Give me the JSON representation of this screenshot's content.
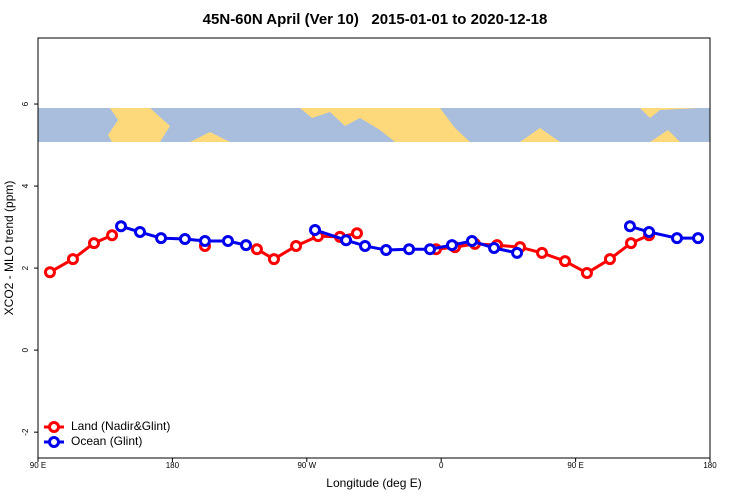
{
  "chart_data": {
    "type": "line",
    "title": "45N-60N April (Ver 10)   2015-01-01 to 2020-12-18",
    "x_label": "Longitude (deg E)",
    "y_label": "XCO2 - MLO trend (ppm)",
    "xlim": [
      90,
      540
    ],
    "xticks": [
      {
        "value": 90,
        "label": "90 E"
      },
      {
        "value": 180,
        "label": "180"
      },
      {
        "value": 270,
        "label": "90 W"
      },
      {
        "value": 360,
        "label": "0"
      },
      {
        "value": 450,
        "label": "90 E"
      },
      {
        "value": 540,
        "label": "180"
      }
    ],
    "ylim": [
      -2.63,
      7.61
    ],
    "yticks": [
      -2,
      0,
      2,
      4,
      6
    ],
    "legend": "bottomleft",
    "series": [
      {
        "name": "Land (Nadir&Glint)",
        "color": "#ff0000",
        "x": [
          98.0,
          113.4,
          127.5,
          139.6,
          null,
          201.8,
          null,
          236.6,
          248.0,
          262.8,
          277.5,
          292.2,
          303.6,
          null,
          356.5,
          369.2,
          382.6,
          397.4,
          412.8,
          427.5,
          442.9,
          457.6,
          473.0,
          487.1,
          499.2
        ],
        "values": [
          1.9,
          2.22,
          2.61,
          2.8,
          null,
          2.54,
          null,
          2.46,
          2.22,
          2.54,
          2.78,
          2.76,
          2.85,
          null,
          2.46,
          2.51,
          2.59,
          2.56,
          2.51,
          2.37,
          2.17,
          1.88,
          2.22,
          2.61,
          2.8
        ]
      },
      {
        "name": "Ocean (Glint)",
        "color": "#0000ee",
        "x": [
          145.6,
          158.3,
          172.4,
          188.4,
          201.8,
          217.2,
          229.3,
          null,
          275.5,
          296.3,
          309.0,
          323.1,
          338.5,
          352.5,
          367.2,
          380.6,
          395.4,
          410.8,
          null,
          486.4,
          499.2,
          517.9,
          532.0
        ],
        "values": [
          3.02,
          2.88,
          2.73,
          2.71,
          2.66,
          2.66,
          2.56,
          null,
          2.93,
          2.68,
          2.54,
          2.44,
          2.46,
          2.46,
          2.56,
          2.66,
          2.49,
          2.37,
          null,
          3.02,
          2.88,
          2.73,
          2.73
        ]
      }
    ]
  }
}
